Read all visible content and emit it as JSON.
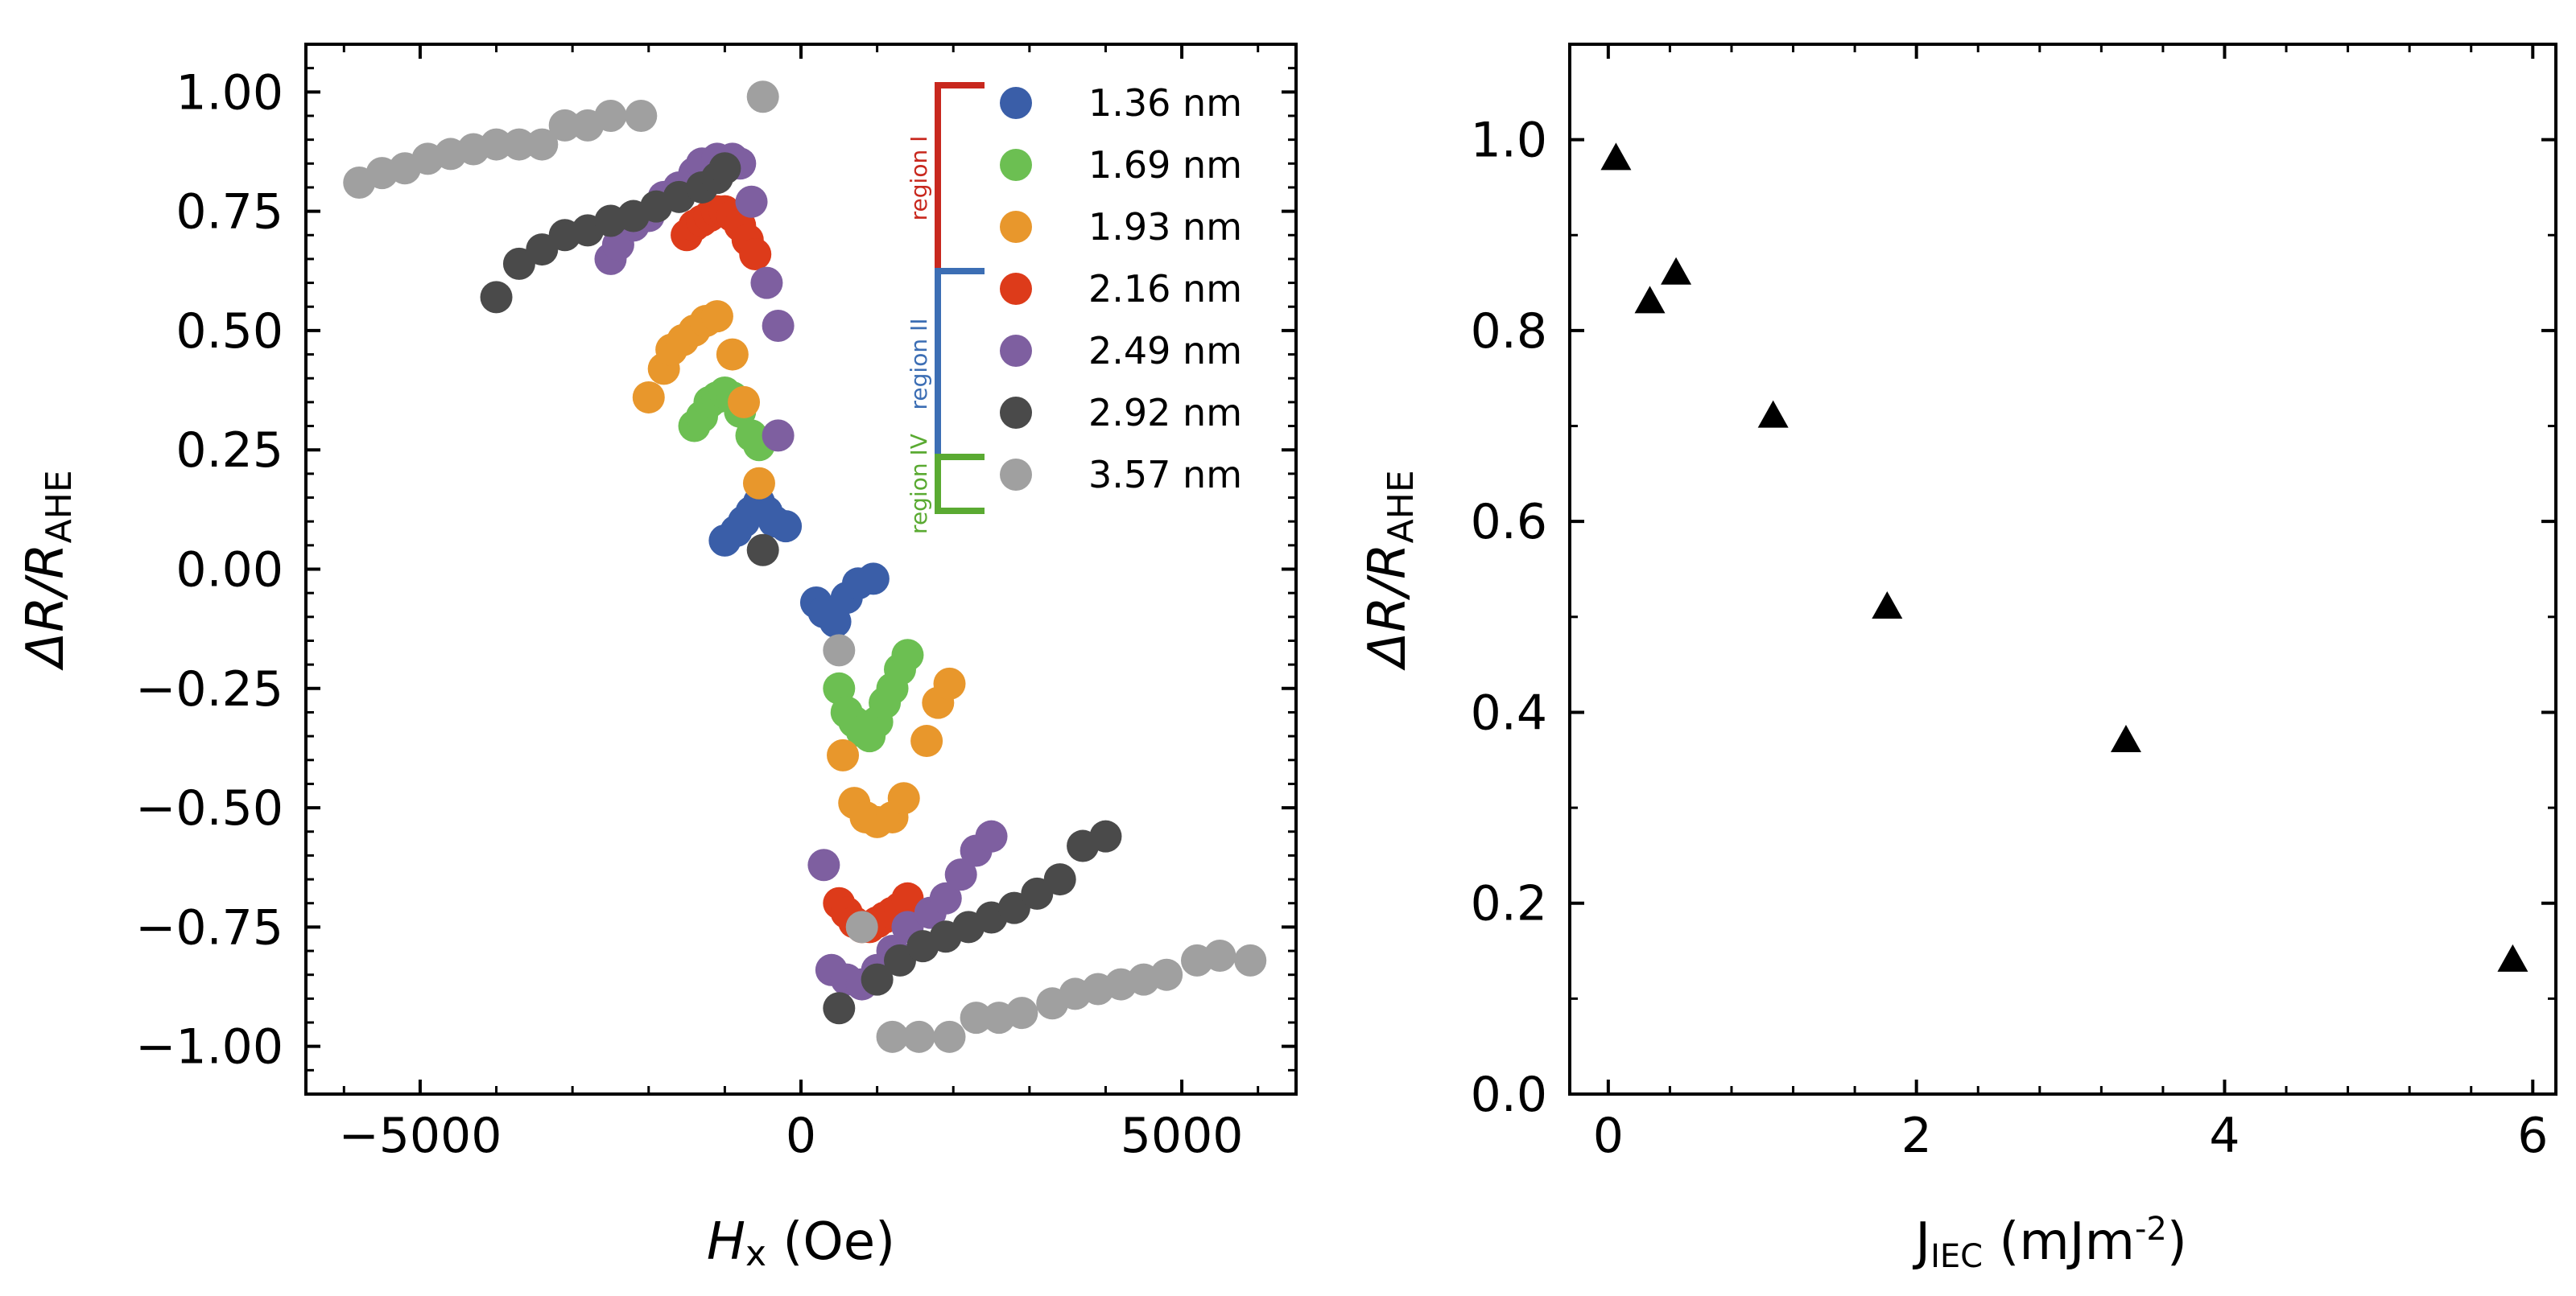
{
  "chart_data": [
    {
      "type": "scatter",
      "xlabel": {
        "main": "H",
        "sub": "x",
        "unit": " (Oe)"
      },
      "ylabel": {
        "main": "ΔR/R",
        "sub": "AHE"
      },
      "xlim": [
        -6500,
        6500
      ],
      "ylim": [
        -1.1,
        1.1
      ],
      "xticks": [
        -5000,
        0,
        5000
      ],
      "xtick_labels": [
        "−5000",
        "0",
        "5000"
      ],
      "yticks": [
        1.0,
        0.75,
        0.5,
        0.25,
        0.0,
        -0.25,
        -0.5,
        -0.75,
        -1.0
      ],
      "ytick_labels": [
        "1.00",
        "0.75",
        "0.50",
        "0.25",
        "0.00",
        "−0.25",
        "−0.50",
        "−0.75",
        "−1.00"
      ],
      "grid": false,
      "legend_position": "top-right",
      "regions": [
        {
          "label": "region I",
          "color": "#c8281e",
          "from_series": 0,
          "to_series": 3
        },
        {
          "label": "region II",
          "color": "#3c6eb4",
          "from_series": 3,
          "to_series": 6
        },
        {
          "label": "region IV",
          "color": "#5aaa32",
          "from_series": 6,
          "to_series": 7
        }
      ],
      "series": [
        {
          "name": "1.36 nm",
          "color": "#3a5ea8",
          "points": [
            [
              -1000,
              0.06
            ],
            [
              -850,
              0.08
            ],
            [
              -750,
              0.1
            ],
            [
              -650,
              0.12
            ],
            [
              -550,
              0.14
            ],
            [
              -450,
              0.12
            ],
            [
              -350,
              0.1
            ],
            [
              -200,
              0.09
            ],
            [
              200,
              -0.07
            ],
            [
              300,
              -0.09
            ],
            [
              450,
              -0.11
            ],
            [
              600,
              -0.06
            ],
            [
              750,
              -0.03
            ],
            [
              950,
              -0.02
            ]
          ]
        },
        {
          "name": "1.69 nm",
          "color": "#6cbf52",
          "points": [
            [
              -1400,
              0.3
            ],
            [
              -1300,
              0.32
            ],
            [
              -1200,
              0.35
            ],
            [
              -1100,
              0.36
            ],
            [
              -1000,
              0.37
            ],
            [
              -900,
              0.36
            ],
            [
              -800,
              0.33
            ],
            [
              -650,
              0.28
            ],
            [
              -550,
              0.26
            ],
            [
              500,
              -0.25
            ],
            [
              600,
              -0.3
            ],
            [
              700,
              -0.32
            ],
            [
              800,
              -0.34
            ],
            [
              900,
              -0.35
            ],
            [
              1000,
              -0.32
            ],
            [
              1100,
              -0.28
            ],
            [
              1200,
              -0.25
            ],
            [
              1300,
              -0.21
            ],
            [
              1400,
              -0.18
            ]
          ]
        },
        {
          "name": "1.93 nm",
          "color": "#e8972c",
          "points": [
            [
              -2000,
              0.36
            ],
            [
              -1800,
              0.42
            ],
            [
              -1700,
              0.46
            ],
            [
              -1550,
              0.48
            ],
            [
              -1400,
              0.5
            ],
            [
              -1250,
              0.52
            ],
            [
              -1100,
              0.53
            ],
            [
              -900,
              0.45
            ],
            [
              -750,
              0.35
            ],
            [
              -550,
              0.18
            ],
            [
              550,
              -0.39
            ],
            [
              700,
              -0.49
            ],
            [
              850,
              -0.52
            ],
            [
              1000,
              -0.53
            ],
            [
              1200,
              -0.52
            ],
            [
              1350,
              -0.48
            ],
            [
              1650,
              -0.36
            ],
            [
              1800,
              -0.28
            ],
            [
              1950,
              -0.24
            ]
          ]
        },
        {
          "name": "2.16 nm",
          "color": "#dd3b1a",
          "points": [
            [
              -1500,
              0.7
            ],
            [
              -1400,
              0.72
            ],
            [
              -1300,
              0.73
            ],
            [
              -1200,
              0.74
            ],
            [
              -1100,
              0.75
            ],
            [
              -1000,
              0.75
            ],
            [
              -900,
              0.74
            ],
            [
              -800,
              0.72
            ],
            [
              -700,
              0.69
            ],
            [
              -600,
              0.66
            ],
            [
              500,
              -0.7
            ],
            [
              600,
              -0.72
            ],
            [
              700,
              -0.74
            ],
            [
              800,
              -0.75
            ],
            [
              900,
              -0.75
            ],
            [
              1000,
              -0.74
            ],
            [
              1100,
              -0.73
            ],
            [
              1200,
              -0.72
            ],
            [
              1300,
              -0.71
            ],
            [
              1400,
              -0.69
            ]
          ]
        },
        {
          "name": "2.49 nm",
          "color": "#7e5fa0",
          "points": [
            [
              -2500,
              0.65
            ],
            [
              -2400,
              0.68
            ],
            [
              -2200,
              0.72
            ],
            [
              -2000,
              0.74
            ],
            [
              -1800,
              0.78
            ],
            [
              -1600,
              0.8
            ],
            [
              -1400,
              0.83
            ],
            [
              -1300,
              0.85
            ],
            [
              -1100,
              0.86
            ],
            [
              -900,
              0.86
            ],
            [
              -800,
              0.85
            ],
            [
              -650,
              0.77
            ],
            [
              -450,
              0.6
            ],
            [
              -300,
              0.51
            ],
            [
              -300,
              0.28
            ],
            [
              300,
              -0.62
            ],
            [
              400,
              -0.84
            ],
            [
              600,
              -0.86
            ],
            [
              800,
              -0.87
            ],
            [
              1000,
              -0.84
            ],
            [
              1200,
              -0.8
            ],
            [
              1400,
              -0.75
            ],
            [
              1700,
              -0.72
            ],
            [
              1900,
              -0.69
            ],
            [
              2100,
              -0.64
            ],
            [
              2300,
              -0.59
            ],
            [
              2500,
              -0.56
            ]
          ]
        },
        {
          "name": "2.92 nm",
          "color": "#4a4a4a",
          "points": [
            [
              -4000,
              0.57
            ],
            [
              -3700,
              0.64
            ],
            [
              -3400,
              0.67
            ],
            [
              -3100,
              0.7
            ],
            [
              -2800,
              0.71
            ],
            [
              -2500,
              0.73
            ],
            [
              -2200,
              0.74
            ],
            [
              -1900,
              0.76
            ],
            [
              -1600,
              0.78
            ],
            [
              -1300,
              0.8
            ],
            [
              -1100,
              0.82
            ],
            [
              -1000,
              0.84
            ],
            [
              -500,
              0.04
            ],
            [
              500,
              -0.92
            ],
            [
              1000,
              -0.86
            ],
            [
              1300,
              -0.82
            ],
            [
              1600,
              -0.79
            ],
            [
              1900,
              -0.77
            ],
            [
              2200,
              -0.75
            ],
            [
              2500,
              -0.73
            ],
            [
              2800,
              -0.71
            ],
            [
              3100,
              -0.68
            ],
            [
              3400,
              -0.65
            ],
            [
              3700,
              -0.58
            ],
            [
              4000,
              -0.56
            ]
          ]
        },
        {
          "name": "3.57 nm",
          "color": "#a0a0a0",
          "points": [
            [
              -5800,
              0.81
            ],
            [
              -5500,
              0.83
            ],
            [
              -5200,
              0.84
            ],
            [
              -4900,
              0.86
            ],
            [
              -4600,
              0.87
            ],
            [
              -4300,
              0.88
            ],
            [
              -4000,
              0.89
            ],
            [
              -3700,
              0.89
            ],
            [
              -3400,
              0.89
            ],
            [
              -3100,
              0.93
            ],
            [
              -2800,
              0.93
            ],
            [
              -2500,
              0.95
            ],
            [
              -2100,
              0.95
            ],
            [
              -500,
              0.99
            ],
            [
              500,
              -0.17
            ],
            [
              800,
              -0.75
            ],
            [
              1200,
              -0.98
            ],
            [
              1550,
              -0.98
            ],
            [
              1950,
              -0.98
            ],
            [
              2300,
              -0.94
            ],
            [
              2600,
              -0.94
            ],
            [
              2900,
              -0.93
            ],
            [
              3300,
              -0.91
            ],
            [
              3600,
              -0.89
            ],
            [
              3900,
              -0.88
            ],
            [
              4200,
              -0.87
            ],
            [
              4500,
              -0.86
            ],
            [
              4800,
              -0.85
            ],
            [
              5200,
              -0.82
            ],
            [
              5500,
              -0.81
            ],
            [
              5900,
              -0.82
            ]
          ]
        }
      ]
    },
    {
      "type": "scatter",
      "xlabel": {
        "main": "J",
        "sub": "IEC",
        "unit": " (mJm",
        "sup": "-2",
        "close": ")"
      },
      "ylabel": {
        "main": "ΔR/R",
        "sub": "AHE"
      },
      "xlim": [
        -0.25,
        6.15
      ],
      "ylim": [
        0.0,
        1.1
      ],
      "xticks": [
        0,
        2,
        4,
        6
      ],
      "xtick_labels": [
        "0",
        "2",
        "4",
        "6"
      ],
      "yticks": [
        0.0,
        0.2,
        0.4,
        0.6,
        0.8,
        1.0
      ],
      "ytick_labels": [
        "0.0",
        "0.2",
        "0.4",
        "0.6",
        "0.8",
        "1.0"
      ],
      "grid": false,
      "series": [
        {
          "name": "triangles",
          "color": "#000000",
          "points": [
            [
              0.05,
              0.98
            ],
            [
              0.27,
              0.83
            ],
            [
              0.44,
              0.86
            ],
            [
              1.07,
              0.71
            ],
            [
              1.81,
              0.51
            ],
            [
              3.36,
              0.37
            ],
            [
              5.87,
              0.14
            ]
          ]
        }
      ]
    }
  ]
}
